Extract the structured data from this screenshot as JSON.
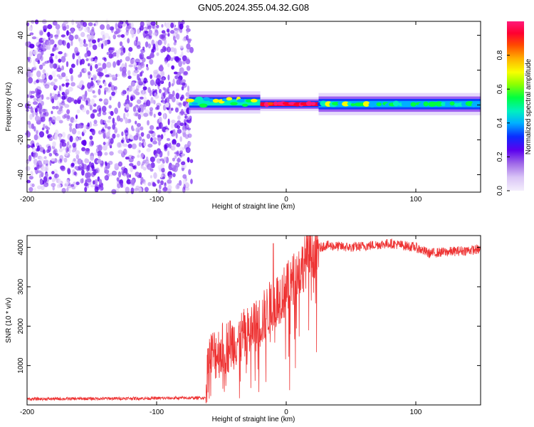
{
  "title": "GN05.2024.355.04.32.G08",
  "chart_data": [
    {
      "type": "heatmap",
      "xlabel": "Height of straight line (km)",
      "ylabel": "Frequency (Hz)",
      "xlim": [
        -200,
        150
      ],
      "ylim": [
        -50,
        48
      ],
      "xticks": [
        -200,
        -100,
        0,
        100
      ],
      "yticks": [
        -40,
        -20,
        0,
        20,
        40
      ],
      "noise_region": {
        "x_range": [
          -200,
          -73
        ],
        "description": "scattered low-amplitude purple blobs"
      },
      "signal_band": [
        {
          "x_range": [
            -75,
            -20
          ],
          "freq_center": 1.5,
          "freq_halfwidth": 4,
          "amplitude": 0.5
        },
        {
          "x_range": [
            -20,
            25
          ],
          "freq_center": 0.5,
          "freq_halfwidth": 2.5,
          "amplitude": 0.95
        },
        {
          "x_range": [
            25,
            150
          ],
          "freq_center": 0.5,
          "freq_halfwidth": 4,
          "amplitude": 0.45
        }
      ],
      "colorbar": {
        "label": "Normalized spectral amplitude",
        "ticks": [
          0.0,
          0.2,
          0.4,
          0.6,
          0.8
        ],
        "range": [
          0,
          1
        ]
      }
    },
    {
      "type": "line",
      "xlabel": "Height of straight line (km)",
      "ylabel": "SNR (10 * v/v)",
      "xlim": [
        -200,
        150
      ],
      "ylim": [
        0,
        4300
      ],
      "xticks": [
        -200,
        -100,
        0,
        100
      ],
      "yticks": [
        1000,
        2000,
        3000,
        4000
      ],
      "color": "#ee3333",
      "series": [
        {
          "name": "SNR",
          "x": [
            -200,
            -150,
            -100,
            -62,
            -60,
            -55,
            -50,
            -40,
            -30,
            -20,
            -10,
            0,
            10,
            20,
            30,
            50,
            80,
            100,
            110,
            130,
            150
          ],
          "y": [
            150,
            160,
            170,
            180,
            1200,
            1300,
            1400,
            1600,
            1800,
            2100,
            2600,
            2900,
            3400,
            3900,
            4050,
            4000,
            4100,
            4000,
            3850,
            3900,
            3950
          ]
        }
      ],
      "spikes": [
        {
          "x": -10,
          "y": 4100
        }
      ]
    }
  ]
}
